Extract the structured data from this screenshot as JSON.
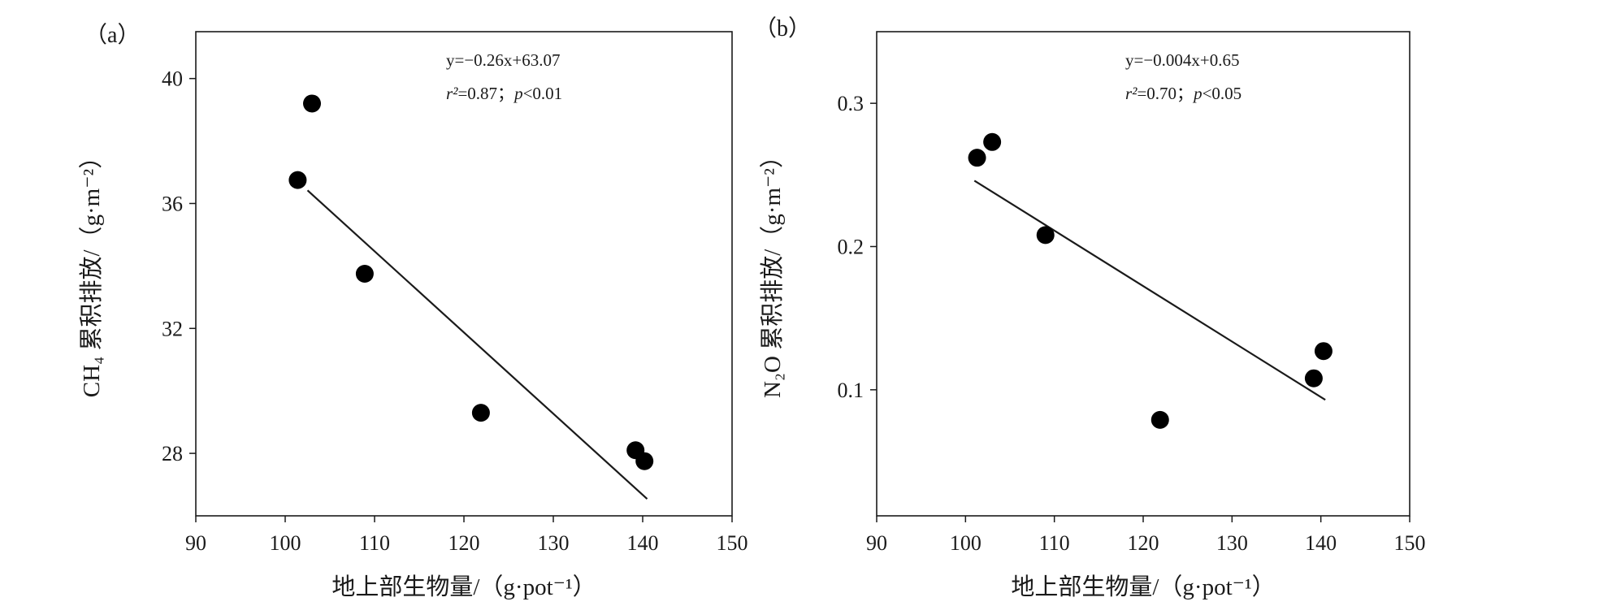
{
  "chart_data": [
    {
      "type": "scatter",
      "panel_label": "（a）",
      "xlabel": "地上部生物量/（g·pot⁻¹）",
      "ylabel": "CH₄ 累积排放/（g·m⁻²）",
      "xlim": [
        90,
        150
      ],
      "ylim": [
        26,
        41.5
      ],
      "xticks": [
        90,
        100,
        110,
        120,
        130,
        140,
        150
      ],
      "yticks": [
        28,
        32,
        36,
        40
      ],
      "grid": false,
      "points": [
        {
          "x": 101.4,
          "y": 36.75
        },
        {
          "x": 103.0,
          "y": 39.2
        },
        {
          "x": 108.9,
          "y": 33.75
        },
        {
          "x": 121.9,
          "y": 29.3
        },
        {
          "x": 139.2,
          "y": 28.1
        },
        {
          "x": 140.2,
          "y": 27.75
        }
      ],
      "fit": {
        "slope": -0.26,
        "intercept": 63.07,
        "x_range": [
          102.5,
          140.5
        ]
      },
      "equation": "y=−0.26x+63.07",
      "stats": {
        "r2_label": "r²",
        "r2_value": "=0.87；",
        "p_label": "p",
        "p_value": "<0.01"
      }
    },
    {
      "type": "scatter",
      "panel_label": "（b）",
      "xlabel": "地上部生物量/（g·pot⁻¹）",
      "ylabel": "N₂O 累积排放/（g·m⁻²）",
      "xlim": [
        90,
        150
      ],
      "ylim": [
        0.012,
        0.35
      ],
      "xticks": [
        90,
        100,
        110,
        120,
        130,
        140,
        150
      ],
      "yticks": [
        0.1,
        0.2,
        0.3
      ],
      "ytick_labels": [
        "0.1",
        "0.2",
        "0.3"
      ],
      "grid": false,
      "points": [
        {
          "x": 101.3,
          "y": 0.262
        },
        {
          "x": 103.0,
          "y": 0.273
        },
        {
          "x": 109.0,
          "y": 0.208
        },
        {
          "x": 121.9,
          "y": 0.079
        },
        {
          "x": 139.2,
          "y": 0.108
        },
        {
          "x": 140.3,
          "y": 0.127
        }
      ],
      "fit": {
        "slope": -0.004,
        "intercept": 0.65,
        "x_range": [
          101.0,
          140.5
        ],
        "y_range": [
          0.246,
          0.093
        ]
      },
      "equation": "y=−0.004x+0.65",
      "stats": {
        "r2_label": "r²",
        "r2_value": "=0.70；",
        "p_label": "p",
        "p_value": "<0.05"
      }
    }
  ]
}
